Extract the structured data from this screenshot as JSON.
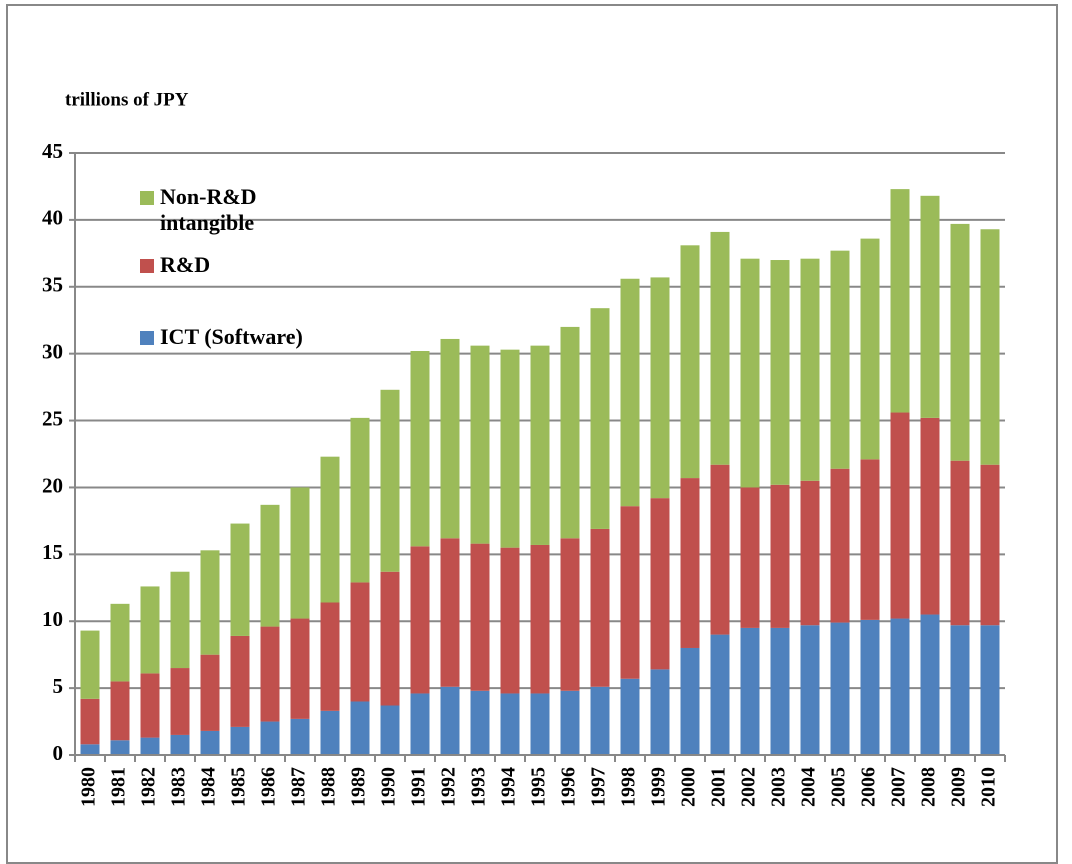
{
  "chart_data": {
    "type": "bar",
    "stacked": true,
    "y_axis_label": "trillions  of JPY",
    "categories": [
      "1980",
      "1981",
      "1982",
      "1983",
      "1984",
      "1985",
      "1986",
      "1987",
      "1988",
      "1989",
      "1990",
      "1991",
      "1992",
      "1993",
      "1994",
      "1995",
      "1996",
      "1997",
      "1998",
      "1999",
      "2000",
      "2001",
      "2002",
      "2003",
      "2004",
      "2005",
      "2006",
      "2007",
      "2008",
      "2009",
      "2010"
    ],
    "series": [
      {
        "name": "ICT (Software)",
        "color": "#4f81bd",
        "values": [
          0.8,
          1.1,
          1.3,
          1.5,
          1.8,
          2.1,
          2.5,
          2.7,
          3.3,
          4.0,
          3.7,
          4.6,
          5.1,
          4.8,
          4.6,
          4.6,
          4.8,
          5.1,
          5.7,
          6.4,
          8.0,
          9.0,
          9.5,
          9.5,
          9.7,
          9.9,
          10.1,
          10.2,
          10.5,
          9.7,
          9.7
        ]
      },
      {
        "name": "R&D",
        "color": "#c0504d",
        "values": [
          3.4,
          4.4,
          4.8,
          5.0,
          5.7,
          6.8,
          7.1,
          7.5,
          8.1,
          8.9,
          10.0,
          11.0,
          11.1,
          11.0,
          10.9,
          11.1,
          11.4,
          11.8,
          12.9,
          12.8,
          12.7,
          12.7,
          10.5,
          10.7,
          10.8,
          11.5,
          12.0,
          15.4,
          14.7,
          12.3,
          12.0
        ]
      },
      {
        "name": "Non-R&D intangible",
        "color": "#9bbb59",
        "values": [
          5.1,
          5.8,
          6.5,
          7.2,
          7.8,
          8.4,
          9.1,
          9.8,
          10.9,
          12.3,
          13.6,
          14.6,
          14.9,
          14.8,
          14.8,
          14.9,
          15.8,
          16.5,
          17.0,
          16.5,
          17.4,
          17.4,
          17.1,
          16.8,
          16.6,
          16.3,
          16.5,
          16.7,
          16.6,
          17.7,
          17.6
        ]
      }
    ],
    "ylim": [
      0,
      45
    ],
    "yticks": [
      0,
      5,
      10,
      15,
      20,
      25,
      30,
      35,
      40,
      45
    ],
    "grid": true
  }
}
